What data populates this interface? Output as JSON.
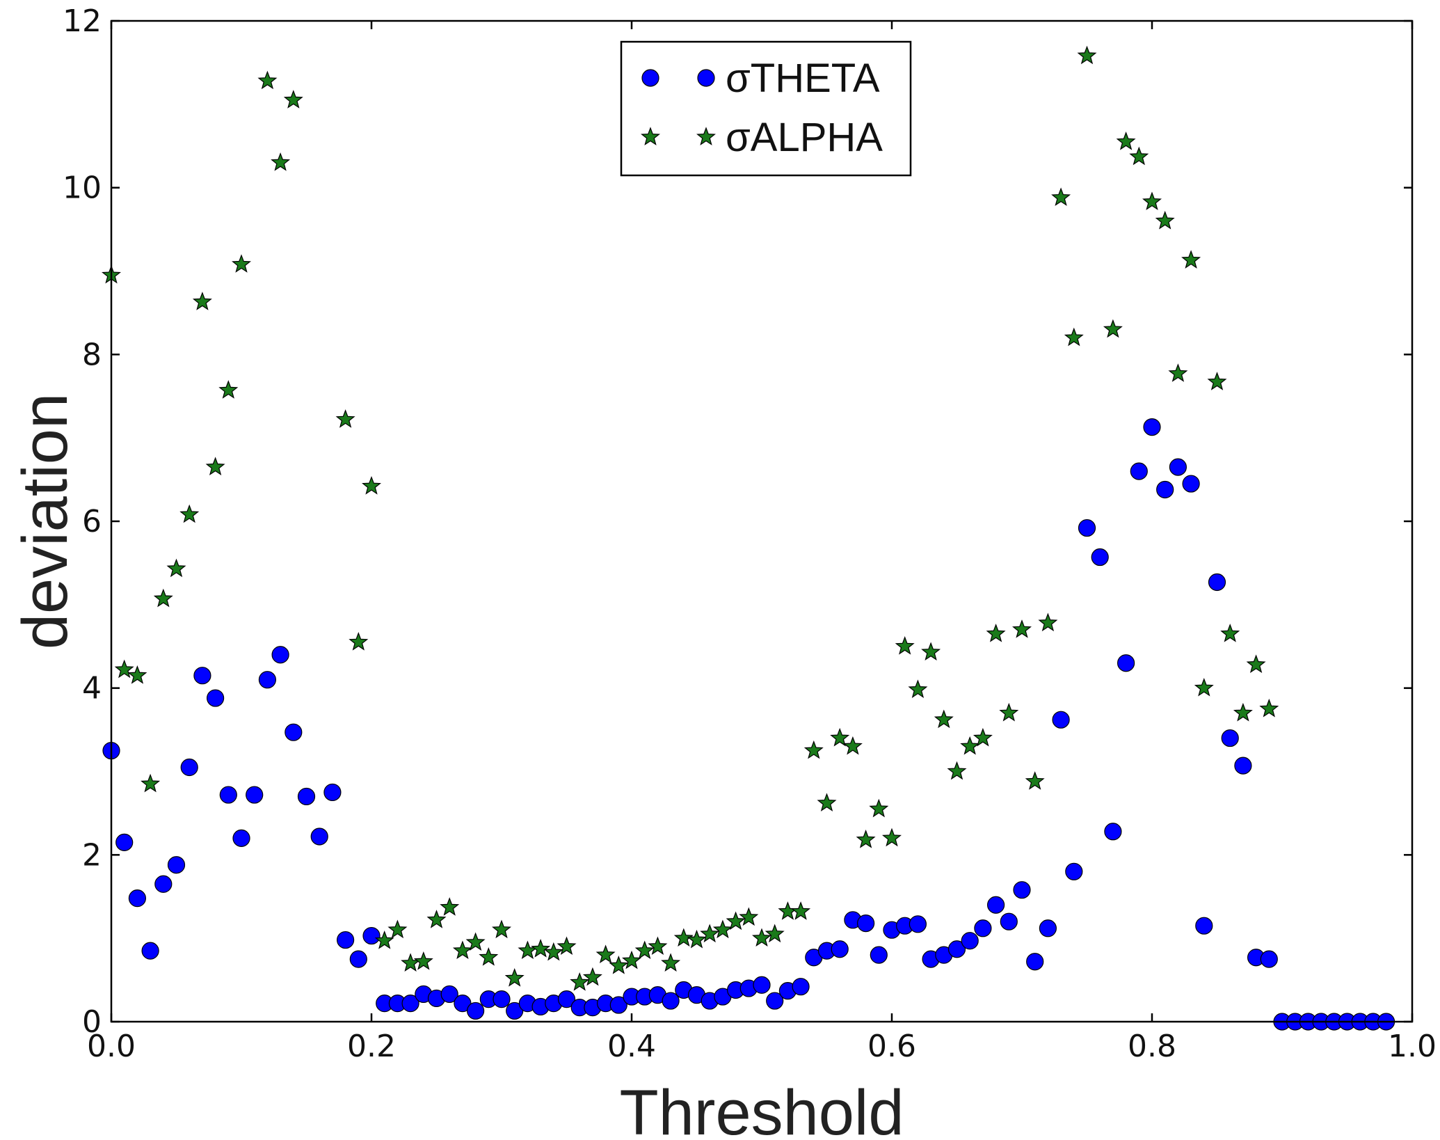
{
  "chart_data": {
    "type": "scatter",
    "xlabel": "Threshold",
    "ylabel": "deviation",
    "xlim": [
      0.0,
      1.0
    ],
    "ylim": [
      0,
      12
    ],
    "xticks": [
      "0.0",
      "0.2",
      "0.4",
      "0.6",
      "0.8",
      "1.0"
    ],
    "yticks": [
      "0",
      "2",
      "4",
      "6",
      "8",
      "10",
      "12"
    ],
    "grid": false,
    "legend_position": "top-center",
    "series": [
      {
        "name": "σTHETA",
        "marker": "circle",
        "color": "#0000ff",
        "points": [
          [
            0.0,
            3.25
          ],
          [
            0.01,
            2.15
          ],
          [
            0.02,
            1.48
          ],
          [
            0.03,
            0.85
          ],
          [
            0.04,
            1.65
          ],
          [
            0.05,
            1.88
          ],
          [
            0.06,
            3.05
          ],
          [
            0.07,
            4.15
          ],
          [
            0.08,
            3.88
          ],
          [
            0.09,
            2.72
          ],
          [
            0.1,
            2.2
          ],
          [
            0.11,
            2.72
          ],
          [
            0.12,
            4.1
          ],
          [
            0.13,
            4.4
          ],
          [
            0.14,
            3.47
          ],
          [
            0.15,
            2.7
          ],
          [
            0.16,
            2.22
          ],
          [
            0.17,
            2.75
          ],
          [
            0.18,
            0.98
          ],
          [
            0.19,
            0.75
          ],
          [
            0.2,
            1.03
          ],
          [
            0.21,
            0.22
          ],
          [
            0.22,
            0.22
          ],
          [
            0.23,
            0.22
          ],
          [
            0.24,
            0.33
          ],
          [
            0.25,
            0.28
          ],
          [
            0.26,
            0.33
          ],
          [
            0.27,
            0.22
          ],
          [
            0.28,
            0.13
          ],
          [
            0.29,
            0.27
          ],
          [
            0.3,
            0.27
          ],
          [
            0.31,
            0.13
          ],
          [
            0.32,
            0.22
          ],
          [
            0.33,
            0.18
          ],
          [
            0.34,
            0.22
          ],
          [
            0.35,
            0.27
          ],
          [
            0.36,
            0.17
          ],
          [
            0.37,
            0.17
          ],
          [
            0.38,
            0.22
          ],
          [
            0.39,
            0.2
          ],
          [
            0.4,
            0.3
          ],
          [
            0.41,
            0.3
          ],
          [
            0.42,
            0.32
          ],
          [
            0.43,
            0.25
          ],
          [
            0.44,
            0.38
          ],
          [
            0.45,
            0.32
          ],
          [
            0.46,
            0.25
          ],
          [
            0.47,
            0.3
          ],
          [
            0.48,
            0.38
          ],
          [
            0.49,
            0.4
          ],
          [
            0.5,
            0.44
          ],
          [
            0.51,
            0.25
          ],
          [
            0.52,
            0.37
          ],
          [
            0.53,
            0.42
          ],
          [
            0.54,
            0.77
          ],
          [
            0.55,
            0.85
          ],
          [
            0.56,
            0.87
          ],
          [
            0.57,
            1.22
          ],
          [
            0.58,
            1.18
          ],
          [
            0.59,
            0.8
          ],
          [
            0.6,
            1.1
          ],
          [
            0.61,
            1.15
          ],
          [
            0.62,
            1.17
          ],
          [
            0.63,
            0.75
          ],
          [
            0.64,
            0.8
          ],
          [
            0.65,
            0.87
          ],
          [
            0.66,
            0.97
          ],
          [
            0.67,
            1.12
          ],
          [
            0.68,
            1.4
          ],
          [
            0.69,
            1.2
          ],
          [
            0.7,
            1.58
          ],
          [
            0.71,
            0.72
          ],
          [
            0.72,
            1.12
          ],
          [
            0.73,
            3.62
          ],
          [
            0.74,
            1.8
          ],
          [
            0.75,
            5.92
          ],
          [
            0.76,
            5.57
          ],
          [
            0.77,
            2.28
          ],
          [
            0.78,
            4.3
          ],
          [
            0.79,
            6.6
          ],
          [
            0.8,
            7.13
          ],
          [
            0.81,
            6.38
          ],
          [
            0.82,
            6.65
          ],
          [
            0.83,
            6.45
          ],
          [
            0.84,
            1.15
          ],
          [
            0.85,
            5.27
          ],
          [
            0.86,
            3.4
          ],
          [
            0.87,
            3.07
          ],
          [
            0.88,
            0.77
          ],
          [
            0.89,
            0.75
          ],
          [
            0.9,
            0.0
          ],
          [
            0.91,
            0.0
          ],
          [
            0.92,
            0.0
          ],
          [
            0.93,
            0.0
          ],
          [
            0.94,
            0.0
          ],
          [
            0.95,
            0.0
          ],
          [
            0.96,
            0.0
          ],
          [
            0.97,
            0.0
          ],
          [
            0.98,
            0.0
          ]
        ]
      },
      {
        "name": "σALPHA",
        "marker": "star",
        "color": "#1a7a1a",
        "points": [
          [
            0.0,
            8.95
          ],
          [
            0.01,
            4.22
          ],
          [
            0.02,
            4.15
          ],
          [
            0.03,
            2.85
          ],
          [
            0.04,
            5.07
          ],
          [
            0.05,
            5.43
          ],
          [
            0.06,
            6.08
          ],
          [
            0.07,
            8.63
          ],
          [
            0.08,
            6.65
          ],
          [
            0.09,
            7.57
          ],
          [
            0.1,
            9.08
          ],
          [
            0.12,
            11.28
          ],
          [
            0.13,
            10.3
          ],
          [
            0.14,
            11.05
          ],
          [
            0.18,
            7.22
          ],
          [
            0.19,
            4.55
          ],
          [
            0.2,
            6.42
          ],
          [
            0.21,
            0.97
          ],
          [
            0.22,
            1.1
          ],
          [
            0.23,
            0.7
          ],
          [
            0.24,
            0.72
          ],
          [
            0.25,
            1.22
          ],
          [
            0.26,
            1.37
          ],
          [
            0.27,
            0.85
          ],
          [
            0.28,
            0.95
          ],
          [
            0.29,
            0.77
          ],
          [
            0.3,
            1.1
          ],
          [
            0.31,
            0.52
          ],
          [
            0.32,
            0.85
          ],
          [
            0.33,
            0.87
          ],
          [
            0.34,
            0.83
          ],
          [
            0.35,
            0.9
          ],
          [
            0.36,
            0.47
          ],
          [
            0.37,
            0.53
          ],
          [
            0.38,
            0.8
          ],
          [
            0.39,
            0.67
          ],
          [
            0.4,
            0.73
          ],
          [
            0.41,
            0.85
          ],
          [
            0.42,
            0.9
          ],
          [
            0.43,
            0.7
          ],
          [
            0.44,
            1.0
          ],
          [
            0.45,
            0.98
          ],
          [
            0.46,
            1.05
          ],
          [
            0.47,
            1.1
          ],
          [
            0.48,
            1.2
          ],
          [
            0.49,
            1.25
          ],
          [
            0.5,
            1.0
          ],
          [
            0.51,
            1.05
          ],
          [
            0.52,
            1.32
          ],
          [
            0.53,
            1.32
          ],
          [
            0.54,
            3.25
          ],
          [
            0.55,
            2.62
          ],
          [
            0.56,
            3.4
          ],
          [
            0.57,
            3.3
          ],
          [
            0.58,
            2.18
          ],
          [
            0.59,
            2.55
          ],
          [
            0.6,
            2.2
          ],
          [
            0.61,
            4.5
          ],
          [
            0.62,
            3.98
          ],
          [
            0.63,
            4.43
          ],
          [
            0.64,
            3.62
          ],
          [
            0.65,
            3.0
          ],
          [
            0.66,
            3.3
          ],
          [
            0.67,
            3.4
          ],
          [
            0.68,
            4.65
          ],
          [
            0.69,
            3.7
          ],
          [
            0.7,
            4.7
          ],
          [
            0.71,
            2.88
          ],
          [
            0.72,
            4.78
          ],
          [
            0.73,
            9.88
          ],
          [
            0.74,
            8.2
          ],
          [
            0.75,
            11.58
          ],
          [
            0.77,
            8.3
          ],
          [
            0.78,
            10.55
          ],
          [
            0.79,
            10.37
          ],
          [
            0.8,
            9.83
          ],
          [
            0.81,
            9.6
          ],
          [
            0.82,
            7.77
          ],
          [
            0.83,
            9.13
          ],
          [
            0.84,
            4.0
          ],
          [
            0.85,
            7.67
          ],
          [
            0.86,
            4.65
          ],
          [
            0.87,
            3.7
          ],
          [
            0.88,
            4.28
          ],
          [
            0.89,
            3.75
          ]
        ]
      }
    ]
  }
}
